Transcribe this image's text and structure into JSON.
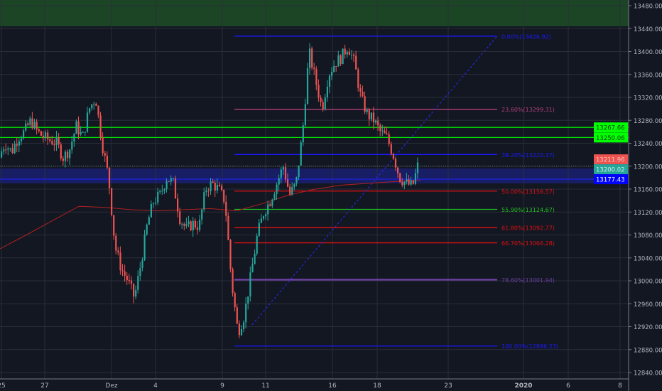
{
  "chart_data": {
    "type": "candlestick",
    "y_axis": {
      "min": 12840,
      "max": 13480,
      "step": 40,
      "tick_labels": [
        "13480.00",
        "13440.00",
        "13400.00",
        "13360.00",
        "13320.00",
        "13280.00",
        "13240.00",
        "13200.00",
        "13160.00",
        "13120.00",
        "13080.00",
        "13040.00",
        "13000.00",
        "12960.00",
        "12920.00",
        "12880.00",
        "12840.00"
      ]
    },
    "x_axis": {
      "tick_labels": [
        "25",
        "27",
        "Dez",
        "4",
        "9",
        "11",
        "16",
        "18",
        "23",
        "2020",
        "6",
        "8"
      ]
    },
    "grid": true,
    "price_path": [
      13215,
      13240,
      13225,
      13250,
      13260,
      13280,
      13260,
      13250,
      13245,
      13240,
      13215,
      13230,
      13270,
      13250,
      13300,
      13320,
      13240,
      13180,
      13060,
      13020,
      13000,
      12970,
      13030,
      13100,
      13140,
      13150,
      13180,
      13170,
      13110,
      13090,
      13100,
      13095,
      13160,
      13170,
      13160,
      13140,
      13000,
      12910,
      12940,
      13010,
      13080,
      13120,
      13140,
      13170,
      13200,
      13150,
      13170,
      13260,
      13400,
      13350,
      13300,
      13360,
      13380,
      13390,
      13410,
      13380,
      13320,
      13290,
      13280,
      13260,
      13250,
      13220,
      13180,
      13170,
      13165,
      13210
    ],
    "moving_average": [
      13056,
      13080,
      13105,
      13130,
      13128,
      13124,
      13122,
      13124,
      13126,
      13122,
      13135,
      13150,
      13160,
      13167,
      13170,
      13173,
      13176
    ],
    "fibonacci": {
      "levels": [
        {
          "label": "0.00%(13426.92)",
          "value": 13426.92,
          "color": "#1a1aff"
        },
        {
          "label": "23.60%(13299.31)",
          "value": 13299.31,
          "color": "#b0407a"
        },
        {
          "label": "38.20%(13220.37)",
          "value": 13220.37,
          "color": "#1a1aff"
        },
        {
          "label": "50.00%(13156.57)",
          "value": 13156.57,
          "color": "#e01010"
        },
        {
          "label": "55.90%(13124.67)",
          "value": 13124.67,
          "color": "#20c020"
        },
        {
          "label": "61.80%(13092.77)",
          "value": 13092.77,
          "color": "#e01010"
        },
        {
          "label": "66.70%(13066.28)",
          "value": 13066.28,
          "color": "#e01010"
        },
        {
          "label": "78.60%(13001.94)",
          "value": 13001.94,
          "color": "#6a3fa0"
        },
        {
          "label": "100.00%(12886.23)",
          "value": 12886.23,
          "color": "#1a1aff"
        }
      ]
    },
    "horizontal_lines": [
      {
        "value": 13267.66,
        "color": "#00e600"
      },
      {
        "value": 13250.06,
        "color": "#00e600"
      }
    ],
    "zones": [
      {
        "from": 13444,
        "to": 13480,
        "color": "#1e4a26"
      },
      {
        "from": 13170,
        "to": 13196,
        "color": "#1a1f6b"
      }
    ],
    "price_labels": [
      {
        "text": "13267.66",
        "value": 13267.66,
        "bg": "#00ff00",
        "fg": "#1a3a1a"
      },
      {
        "text": "13250.06",
        "value": 13250.06,
        "bg": "#00ff00",
        "fg": "#1a3a1a"
      },
      {
        "text": "13211.96",
        "value": 13211.96,
        "bg": "#ef5350",
        "fg": "#f6c0c0"
      },
      {
        "text": "13200.02",
        "value": 13200.02,
        "bg": "#26a69a",
        "fg": "#c8ece8"
      },
      {
        "text": "13177.43",
        "value": 13177.43,
        "bg": "#0000ff",
        "fg": "#ffffff"
      }
    ],
    "colors": {
      "up": "#26a69a",
      "down": "#ef5350",
      "background": "#131722",
      "grid": "#2a2e39",
      "ma": "#b02020"
    }
  }
}
